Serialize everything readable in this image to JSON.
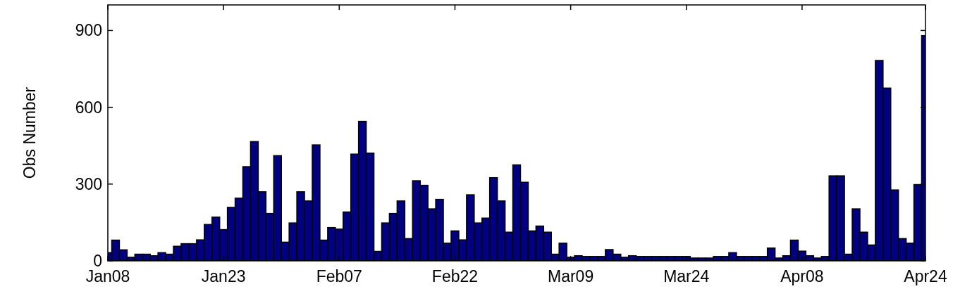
{
  "chart_data": {
    "type": "bar",
    "ylabel": "Obs Number",
    "color": "#000080",
    "x": [
      "--01-08",
      "--01-09",
      "--01-10",
      "--01-11",
      "--01-12",
      "--01-13",
      "--01-14",
      "--01-15",
      "--01-16",
      "--01-17",
      "--01-18",
      "--01-19",
      "--01-20",
      "--01-21",
      "--01-22",
      "--01-23",
      "--01-24",
      "--01-25",
      "--01-26",
      "--01-27",
      "--01-28",
      "--01-29",
      "--01-30",
      "--01-31",
      "--02-01",
      "--02-02",
      "--02-03",
      "--02-04",
      "--02-05",
      "--02-06",
      "--02-07",
      "--02-08",
      "--02-09",
      "--02-10",
      "--02-11",
      "--02-12",
      "--02-13",
      "--02-14",
      "--02-15",
      "--02-16",
      "--02-17",
      "--02-18",
      "--02-19",
      "--02-20",
      "--02-21",
      "--02-22",
      "--02-23",
      "--02-24",
      "--02-25",
      "--02-26",
      "--02-27",
      "--02-28",
      "--03-01",
      "--03-02",
      "--03-03",
      "--03-04",
      "--03-05",
      "--03-06",
      "--03-07",
      "--03-08",
      "--03-09",
      "--03-10",
      "--03-11",
      "--03-12",
      "--03-13",
      "--03-14",
      "--03-15",
      "--03-16",
      "--03-17",
      "--03-18",
      "--03-19",
      "--03-20",
      "--03-21",
      "--03-22",
      "--03-23",
      "--03-24",
      "--03-25",
      "--03-26",
      "--03-27",
      "--03-28",
      "--03-29",
      "--03-30",
      "--03-31",
      "--04-01",
      "--04-02",
      "--04-03",
      "--04-04",
      "--04-05",
      "--04-06",
      "--04-07",
      "--04-08",
      "--04-09",
      "--04-10",
      "--04-11",
      "--04-12",
      "--04-13",
      "--04-14",
      "--04-15",
      "--04-16",
      "--04-17",
      "--04-18",
      "--04-19",
      "--04-20",
      "--04-21",
      "--04-22",
      "--04-23",
      "--04-24"
    ],
    "values": [
      32,
      81,
      43,
      14,
      26,
      26,
      20,
      32,
      26,
      57,
      67,
      67,
      82,
      142,
      171,
      122,
      209,
      245,
      368,
      466,
      270,
      185,
      411,
      73,
      148,
      270,
      234,
      453,
      81,
      130,
      124,
      191,
      417,
      545,
      421,
      37,
      148,
      185,
      234,
      87,
      313,
      295,
      203,
      240,
      69,
      117,
      82,
      258,
      148,
      167,
      325,
      234,
      112,
      375,
      307,
      117,
      136,
      112,
      26,
      69,
      14,
      20,
      17,
      17,
      17,
      44,
      26,
      14,
      20,
      17,
      17,
      17,
      17,
      17,
      17,
      17,
      11,
      11,
      11,
      17,
      17,
      32,
      17,
      17,
      17,
      17,
      50,
      11,
      20,
      81,
      38,
      20,
      11,
      17,
      332,
      332,
      26,
      203,
      112,
      62,
      783,
      675,
      277,
      87,
      69,
      298,
      880
    ],
    "xlim": [
      "--01-08",
      "--04-24"
    ],
    "xticks": [
      {
        "value": "--01-08",
        "label": "Jan08"
      },
      {
        "value": "--01-23",
        "label": "Jan23"
      },
      {
        "value": "--02-07",
        "label": "Feb07"
      },
      {
        "value": "--02-22",
        "label": "Feb22"
      },
      {
        "value": "--03-09",
        "label": "Mar09"
      },
      {
        "value": "--03-24",
        "label": "Mar24"
      },
      {
        "value": "--04-08",
        "label": "Apr08"
      },
      {
        "value": "--04-24",
        "label": "Apr24"
      }
    ],
    "ylim": [
      0,
      1000
    ],
    "yticks": [
      0,
      300,
      600,
      900
    ]
  }
}
